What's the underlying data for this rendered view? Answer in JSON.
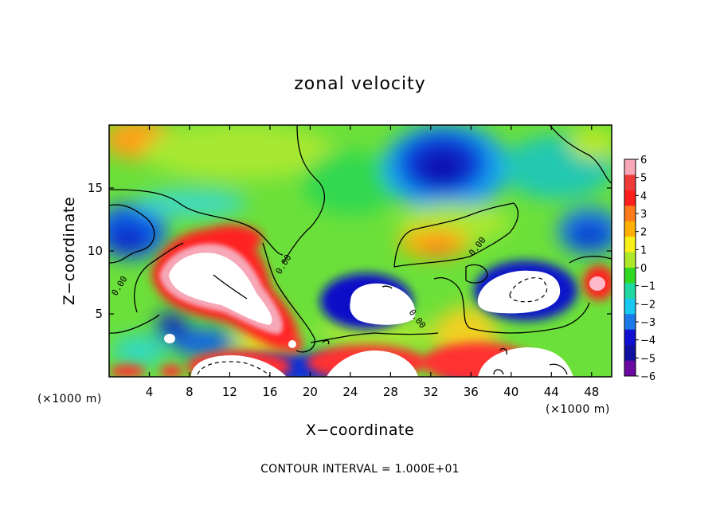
{
  "chart_data": {
    "type": "heatmap",
    "title": "zonal velocity",
    "xlabel": "X−coordinate",
    "ylabel": "Z−coordinate",
    "x_unit_left": "(×1000 m)",
    "x_unit_right": "(×1000 m)",
    "xlim": [
      0,
      50
    ],
    "ylim": [
      0,
      20
    ],
    "x_ticks": [
      4,
      8,
      12,
      16,
      20,
      24,
      28,
      32,
      36,
      40,
      44,
      48
    ],
    "y_ticks": [
      5,
      10,
      15
    ],
    "x_tick_labels": [
      "4",
      "8",
      "12",
      "16",
      "20",
      "24",
      "28",
      "32",
      "36",
      "40",
      "44",
      "48"
    ],
    "y_tick_labels": [
      "5",
      "10",
      "15"
    ],
    "colorbar": {
      "min": -6,
      "max": 6,
      "tick_labels": [
        "6",
        "5",
        "4",
        "3",
        "2",
        "1",
        "0",
        "−1",
        "−2",
        "−3",
        "−4",
        "−5",
        "−6"
      ],
      "colors": [
        "#f7a8b8",
        "#f03a3a",
        "#ff1e1e",
        "#ff7a1a",
        "#ffb000",
        "#f8f018",
        "#aee82a",
        "#30d820",
        "#1ed8a0",
        "#18c8f0",
        "#1a78e8",
        "#1010d0",
        "#1010a0",
        "#6a0aa0"
      ]
    },
    "contour_labels": [
      "0.00",
      "0.00",
      "0.00",
      "0.00",
      "0.00"
    ],
    "regions": [
      {
        "name": "upper-left warm",
        "x": 1,
        "z": 19.2,
        "value": 3
      },
      {
        "name": "upper-center cold core",
        "x": 33.5,
        "z": 16.5,
        "value": -5
      },
      {
        "name": "left cold band",
        "x": 1.5,
        "z": 11.5,
        "value": -3
      },
      {
        "name": "high-speed core left",
        "x": 11,
        "z": 8,
        "value": 7
      },
      {
        "name": "high-speed core center",
        "x": 27.5,
        "z": 5.8,
        "value": 7
      },
      {
        "name": "high-speed core right",
        "x": 42.5,
        "z": 7.2,
        "value": 7
      },
      {
        "name": "high-speed core bottom left",
        "x": 12,
        "z": 1,
        "value": 7
      },
      {
        "name": "high-speed core bottom center",
        "x": 28,
        "z": 1.2,
        "value": 7
      },
      {
        "name": "high-speed core bottom right",
        "x": 43,
        "z": 1.6,
        "value": 7
      },
      {
        "name": "right warm spot",
        "x": 49,
        "z": 7.2,
        "value": 4
      },
      {
        "name": "center warm patch",
        "x": 33.5,
        "z": 10.5,
        "value": 3
      },
      {
        "name": "cold band center",
        "x": 29,
        "z": 7.5,
        "value": -5
      },
      {
        "name": "cold ring right",
        "x": 40,
        "z": 8,
        "value": -5
      }
    ]
  },
  "footer": {
    "contour_interval": "CONTOUR INTERVAL = 1.000E+01"
  },
  "colors": {
    "background": "#ffffff",
    "frame": "#000000",
    "contour": "#000000"
  }
}
